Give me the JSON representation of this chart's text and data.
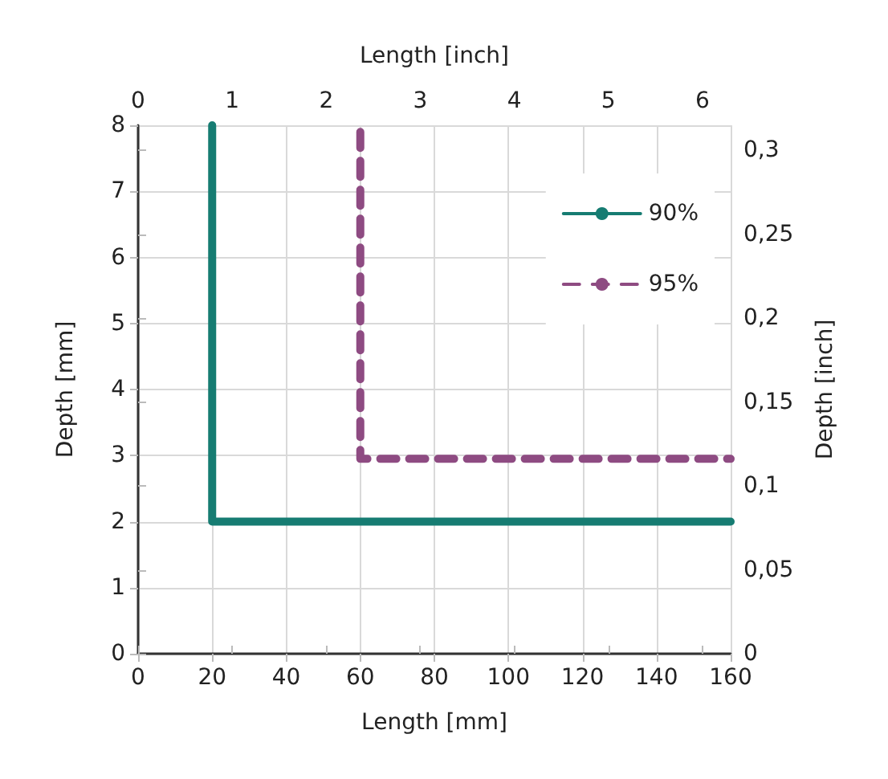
{
  "chart_data": {
    "type": "line",
    "xlabel": "Length [mm]",
    "ylabel": "Depth [mm]",
    "x2label": "Length [inch]",
    "y2label": "Depth [inch]",
    "xlim": [
      0,
      160
    ],
    "xticks": [
      0,
      20,
      40,
      60,
      80,
      100,
      120,
      140,
      160
    ],
    "ylim": [
      0,
      8
    ],
    "yticks": [
      0,
      1,
      2,
      3,
      4,
      5,
      6,
      7,
      8
    ],
    "x2lim": [
      0,
      6.3
    ],
    "x2ticks": [
      0,
      1,
      2,
      3,
      4,
      5,
      6
    ],
    "y2lim": [
      0,
      0.315
    ],
    "y2ticks": [
      0,
      {
        "value": 0.05,
        "label": "0,05"
      },
      {
        "value": 0.1,
        "label": "0,1"
      },
      {
        "value": 0.15,
        "label": "0,15"
      },
      {
        "value": 0.2,
        "label": "0,2"
      },
      {
        "value": 0.25,
        "label": "0,25"
      },
      {
        "value": 0.3,
        "label": "0,3"
      }
    ],
    "series": [
      {
        "name": "90%",
        "color": "#167c72",
        "x": [
          20,
          20,
          160
        ],
        "values": [
          8,
          2,
          2
        ],
        "line_style": "solid"
      },
      {
        "name": "95%",
        "color": "#8e4b82",
        "x": [
          60,
          60,
          160
        ],
        "values": [
          7.9,
          2.95,
          2.95
        ],
        "line_style": "dashed"
      }
    ],
    "grid": true,
    "legend": "top right",
    "marker": "none"
  }
}
